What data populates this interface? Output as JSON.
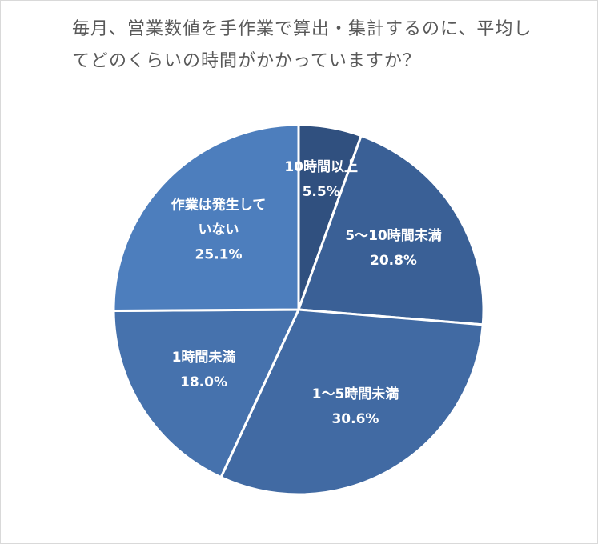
{
  "chart_data": {
    "type": "pie",
    "title": "毎月、営業数値を手作業で算出・集計するのに、平均してどのくらいの時間がかかっていますか？",
    "categories": [
      "10時間以上",
      "5～10時間未満",
      "1～5時間未満",
      "1時間未満",
      "作業は発生していない"
    ],
    "values": [
      5.5,
      20.8,
      30.6,
      18.0,
      25.1
    ],
    "data_labels": [
      "5.5%",
      "20.8%",
      "30.6%",
      "18.0%",
      "25.1%"
    ],
    "colors": [
      "#30507f",
      "#3a6096",
      "#416aa3",
      "#4672ad",
      "#4d7ebd"
    ]
  }
}
